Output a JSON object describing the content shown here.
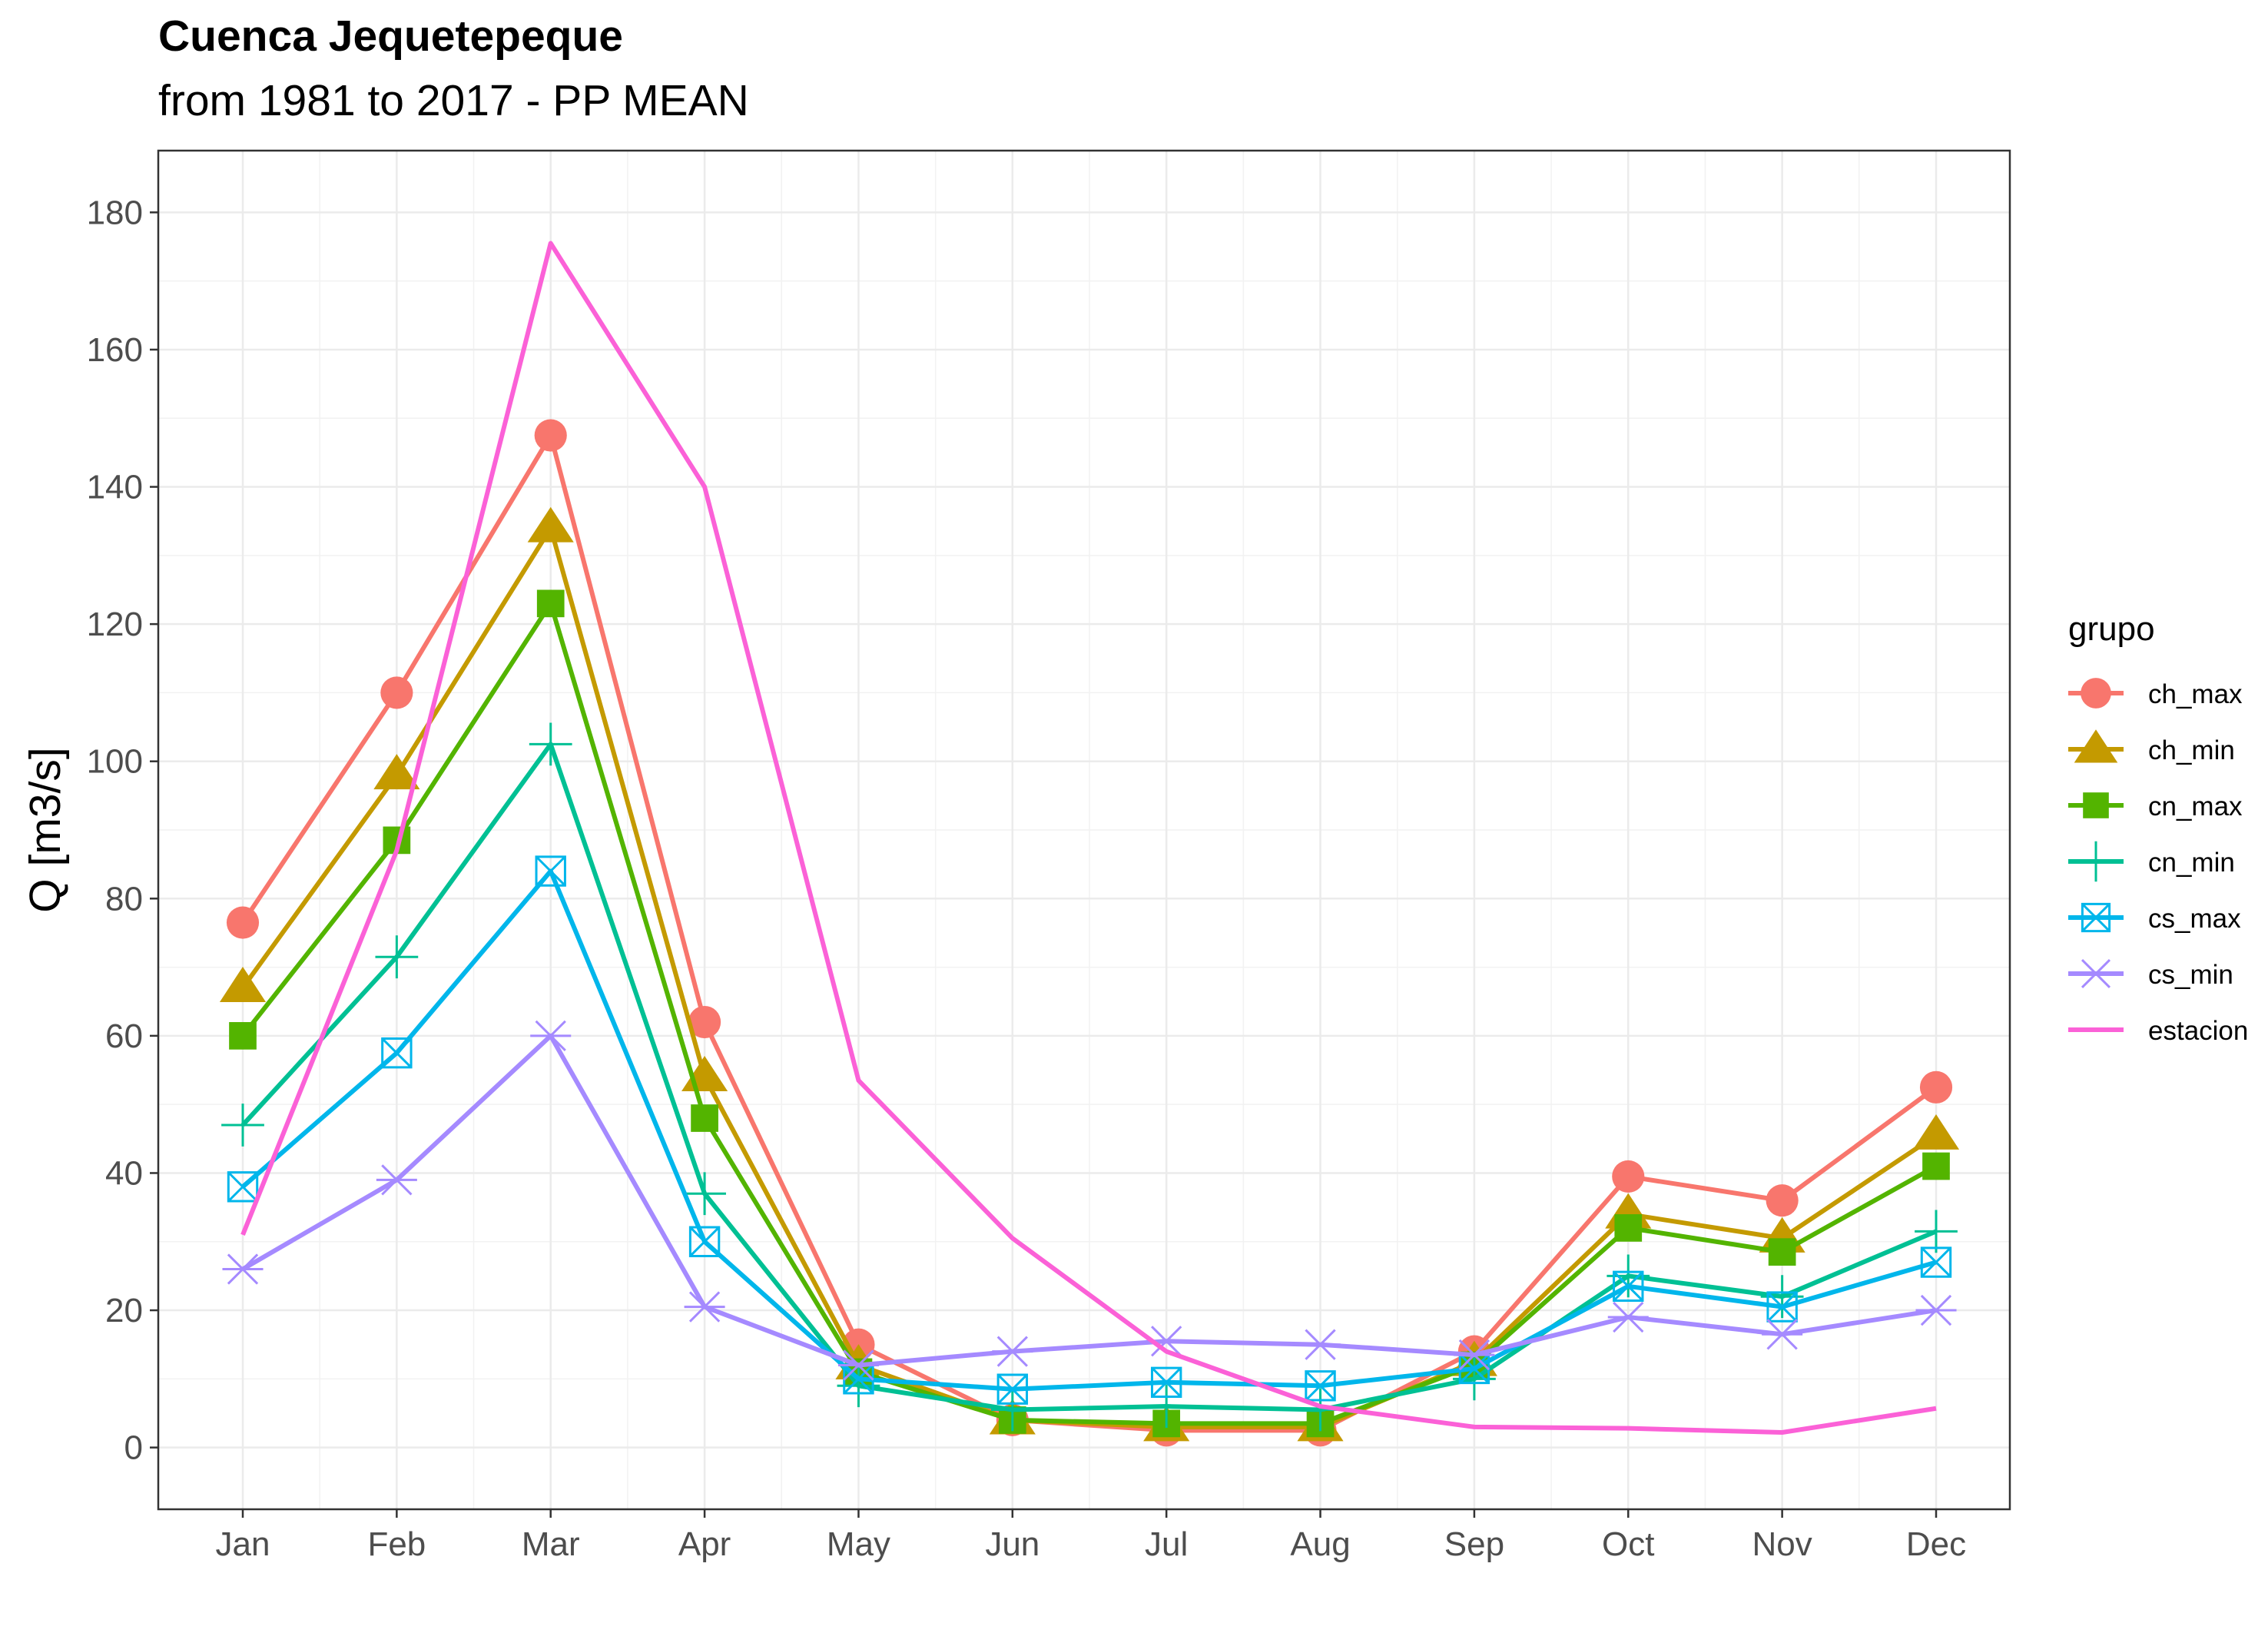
{
  "chart_data": {
    "type": "line",
    "title": "Cuenca Jequetepeque",
    "subtitle": "from 1981 to 2017 - PP MEAN",
    "xlabel": "",
    "ylabel": "Q [m3/s]",
    "categories": [
      "Jan",
      "Feb",
      "Mar",
      "Apr",
      "May",
      "Jun",
      "Jul",
      "Aug",
      "Sep",
      "Oct",
      "Nov",
      "Dec"
    ],
    "ylim": [
      -9,
      189
    ],
    "yticks": [
      0,
      20,
      40,
      60,
      80,
      100,
      120,
      140,
      160,
      180
    ],
    "grid": true,
    "legend_title": "grupo",
    "legend_position": "right",
    "series": [
      {
        "name": "ch_max",
        "color": "#F8766D",
        "marker": "circle",
        "values": [
          76.5,
          110,
          147.5,
          62,
          15,
          4,
          2.5,
          2.5,
          14,
          39.5,
          36,
          52.5
        ]
      },
      {
        "name": "ch_min",
        "color": "#C49A00",
        "marker": "triangle",
        "values": [
          67,
          98,
          134,
          54,
          12,
          4,
          3,
          3,
          12.5,
          34,
          30.5,
          45.5
        ]
      },
      {
        "name": "cn_max",
        "color": "#53B400",
        "marker": "square",
        "values": [
          60,
          88.5,
          123,
          48,
          11,
          4,
          3.5,
          3.5,
          12,
          32,
          28.5,
          41
        ]
      },
      {
        "name": "cn_min",
        "color": "#00C094",
        "marker": "plus",
        "values": [
          47,
          71.5,
          102.5,
          37,
          9,
          5.5,
          6,
          5.5,
          10,
          25,
          22,
          31.5
        ]
      },
      {
        "name": "cs_max",
        "color": "#00B6EB",
        "marker": "square-x",
        "values": [
          38,
          57.5,
          84,
          30,
          10,
          8.5,
          9.5,
          9,
          11.5,
          23.5,
          20.5,
          27
        ]
      },
      {
        "name": "cs_min",
        "color": "#A58AFF",
        "marker": "asterisk",
        "values": [
          26,
          39,
          60,
          20.5,
          12,
          14,
          15.5,
          15,
          13.5,
          19,
          16.5,
          20
        ]
      },
      {
        "name": "estacion",
        "color": "#FB61D7",
        "marker": "none",
        "values": [
          31,
          87,
          175.5,
          140,
          53.5,
          30.5,
          14,
          6,
          3,
          2.8,
          2.2,
          5.7
        ]
      }
    ]
  }
}
